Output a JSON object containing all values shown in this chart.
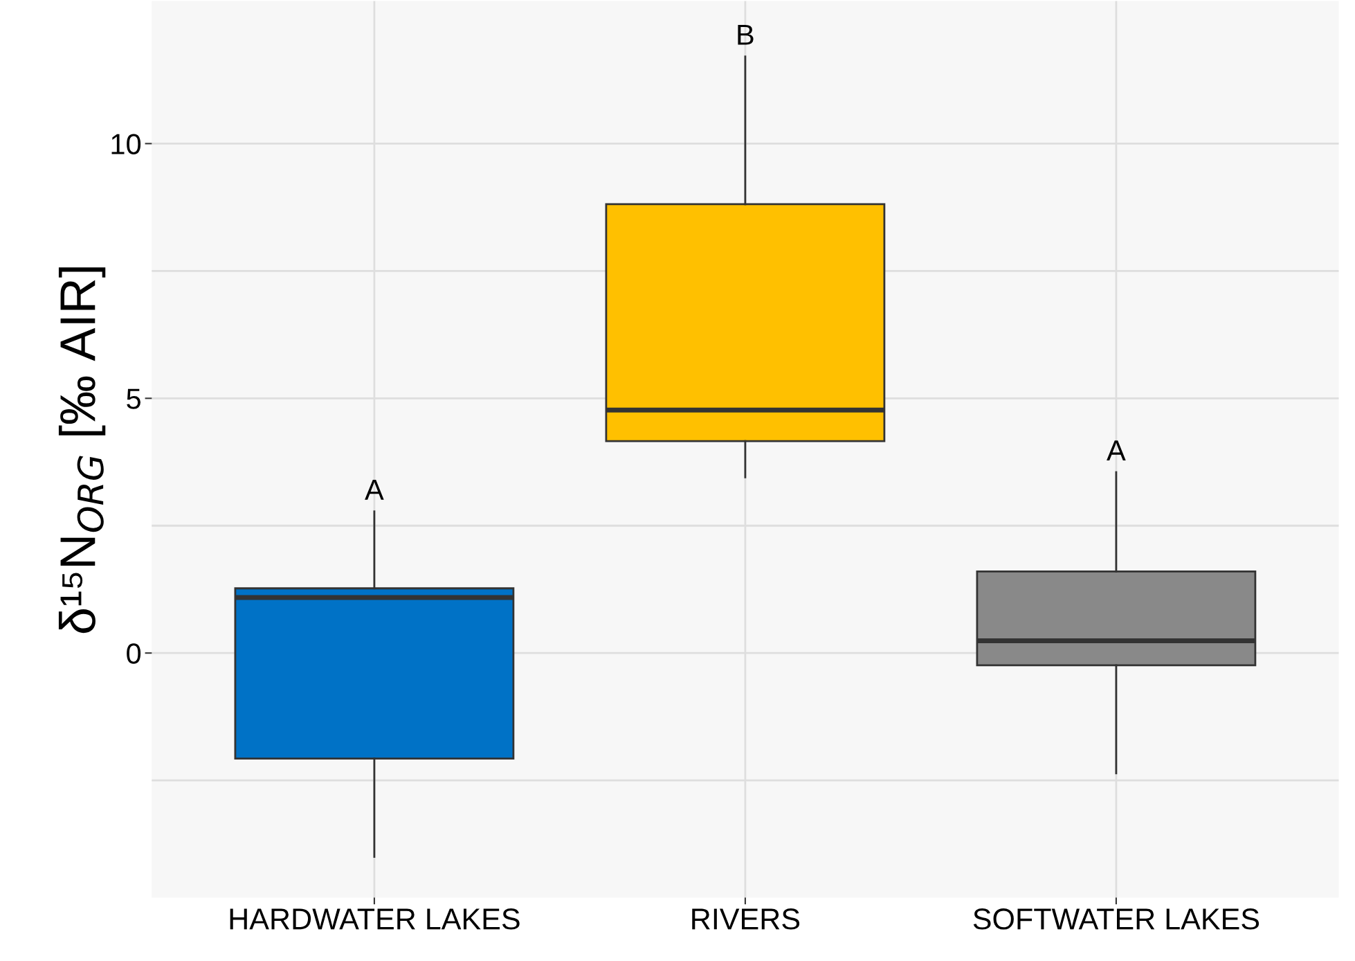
{
  "chart_data": {
    "type": "box",
    "ylabel": "δ¹⁵N$_{ORG}$ [‰ AIR]",
    "categories": [
      "HARDWATER LAKES",
      "RIVERS",
      "SOFTWATER LAKES"
    ],
    "colors": [
      "#0072c6",
      "#ffc000",
      "#898989"
    ],
    "boxes": [
      {
        "low": -4.0,
        "q1": -2.07,
        "median": 1.09,
        "q3": 1.27,
        "high": 2.78
      },
      {
        "low": 3.45,
        "q1": 4.16,
        "median": 4.77,
        "q3": 8.81,
        "high": 11.71
      },
      {
        "low": -2.36,
        "q1": -0.24,
        "median": 0.24,
        "q3": 1.6,
        "high": 3.55
      }
    ],
    "ylim": [
      -4.8,
      12.8
    ],
    "yticks": [
      {
        "value": -2.5,
        "label": null
      },
      0,
      {
        "value": 2.5,
        "label": null
      },
      5,
      {
        "value": 7.5,
        "label": null
      },
      10
    ],
    "grid": true,
    "annotations": [
      "A",
      "B",
      "A"
    ]
  }
}
